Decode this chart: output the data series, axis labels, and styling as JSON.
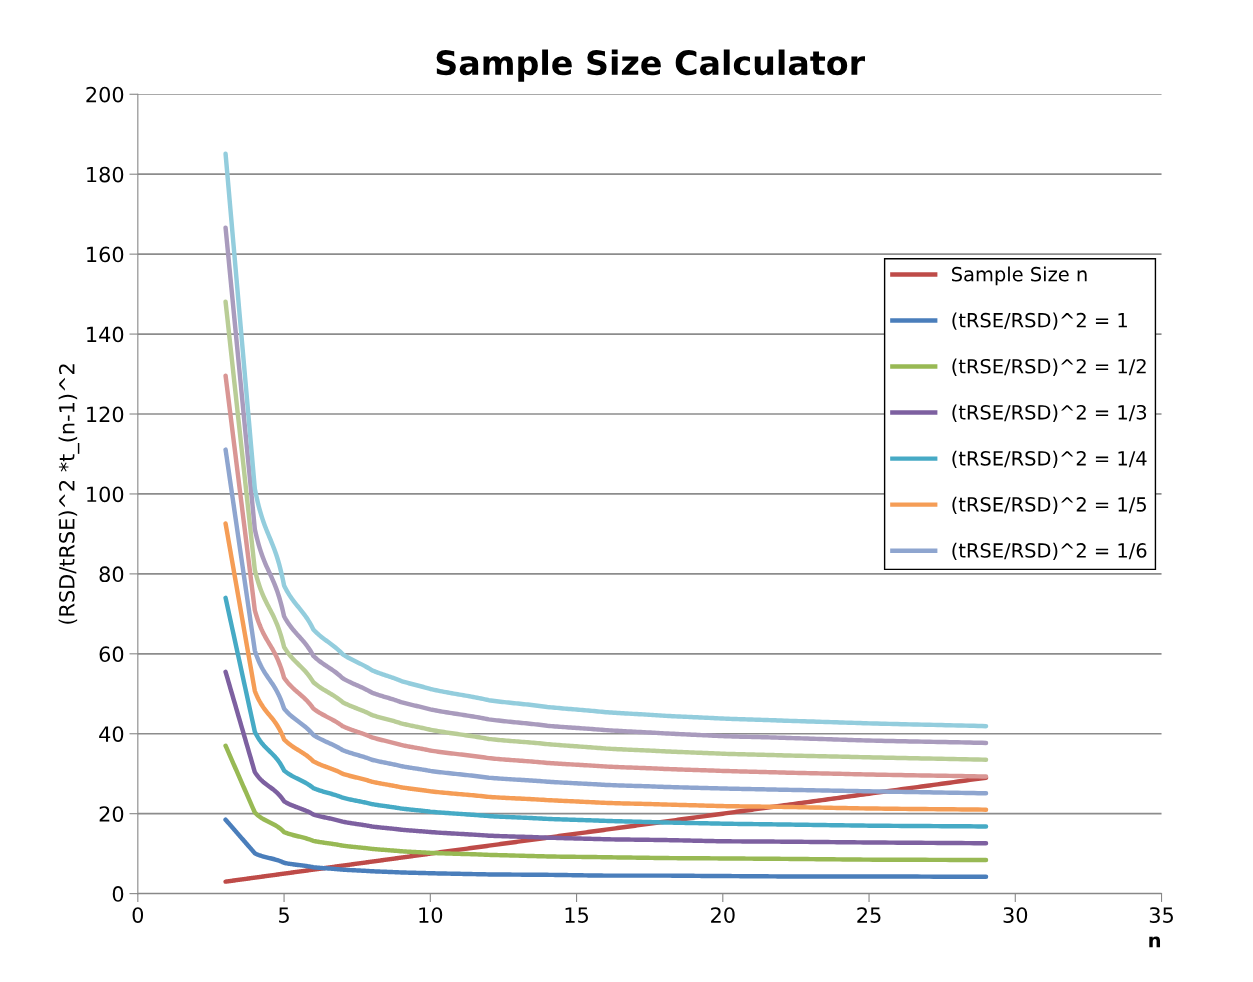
{
  "chart_data": {
    "type": "line",
    "title": "Sample Size Calculator",
    "xlabel": "n",
    "ylabel": "(RSD/tRSE)^2 *t_(n-1)^2",
    "xlim": [
      0,
      35
    ],
    "xticks": [
      0,
      5,
      10,
      15,
      20,
      25,
      30,
      35
    ],
    "ylim": [
      0,
      200
    ],
    "yticks": [
      0,
      20,
      40,
      60,
      80,
      100,
      120,
      140,
      160,
      180,
      200
    ],
    "grid": "y",
    "legend": "right",
    "marker": "none",
    "line_style": "solid",
    "x": [
      3,
      4,
      5,
      6,
      7,
      8,
      9,
      10,
      12,
      14,
      16,
      18,
      20,
      22,
      25,
      29
    ],
    "series": [
      {
        "name": "Sample Size n",
        "color": "#be4b48",
        "values": [
          3,
          4,
          5,
          6,
          7,
          8,
          9,
          10,
          12,
          14,
          16,
          18,
          20,
          22,
          25,
          29
        ]
      },
      {
        "name": "(tRSE/RSD)^2 = 1",
        "color": "#4a7ebb",
        "values": [
          18.5,
          10.1,
          7.7,
          6.6,
          6.0,
          5.6,
          5.3,
          5.1,
          4.8,
          4.7,
          4.5,
          4.5,
          4.4,
          4.3,
          4.3,
          4.2
        ]
      },
      {
        "name": "(tRSE/RSD)^2 = 1/2",
        "color": "#98b954",
        "values": [
          37.0,
          20.3,
          15.4,
          13.2,
          12.0,
          11.2,
          10.6,
          10.2,
          9.7,
          9.3,
          9.1,
          8.9,
          8.8,
          8.7,
          8.5,
          8.4
        ]
      },
      {
        "name": "(tRSE/RSD)^2 = 1/3",
        "color": "#7d60a0",
        "values": [
          55.5,
          30.4,
          23.1,
          19.8,
          18.0,
          16.8,
          16.0,
          15.4,
          14.5,
          14.0,
          13.6,
          13.4,
          13.1,
          13.0,
          12.8,
          12.6
        ]
      },
      {
        "name": "(tRSE/RSD)^2 = 1/4",
        "color": "#46aac5",
        "values": [
          74.0,
          40.5,
          30.8,
          26.4,
          24.0,
          22.4,
          21.3,
          20.5,
          19.4,
          18.7,
          18.2,
          17.8,
          17.5,
          17.3,
          17.0,
          16.8
        ]
      },
      {
        "name": "(tRSE/RSD)^2 = 1/5",
        "color": "#f59d56",
        "values": [
          92.6,
          50.7,
          38.6,
          33.1,
          30.0,
          28.0,
          26.6,
          25.6,
          24.2,
          23.4,
          22.7,
          22.3,
          21.9,
          21.7,
          21.3,
          21.0
        ]
      },
      {
        "name": "(tRSE/RSD)^2 = 1/6",
        "color": "#8ea5cf",
        "values": [
          111.1,
          60.8,
          46.3,
          39.7,
          35.9,
          33.5,
          31.9,
          30.7,
          29.0,
          28.0,
          27.2,
          26.7,
          26.3,
          26.0,
          25.6,
          25.1
        ]
      },
      {
        "color": "#d99694",
        "values": [
          129.6,
          70.9,
          54.0,
          46.3,
          41.9,
          39.1,
          37.2,
          35.8,
          33.9,
          32.7,
          31.8,
          31.2,
          30.7,
          30.3,
          29.8,
          29.3
        ]
      },
      {
        "color": "#b9cd96",
        "values": [
          148.1,
          81.0,
          61.7,
          52.9,
          47.9,
          44.7,
          42.6,
          41.0,
          38.7,
          37.4,
          36.3,
          35.6,
          35.0,
          34.6,
          34.1,
          33.5
        ]
      },
      {
        "color": "#a99bbd",
        "values": [
          166.6,
          91.2,
          69.4,
          59.5,
          53.9,
          50.3,
          47.9,
          46.1,
          43.6,
          42.0,
          40.9,
          40.1,
          39.4,
          39.0,
          38.3,
          37.7
        ]
      },
      {
        "color": "#93cddd",
        "values": [
          185.1,
          101.3,
          77.1,
          66.1,
          59.9,
          55.9,
          53.2,
          51.2,
          48.4,
          46.7,
          45.4,
          44.5,
          43.8,
          43.3,
          42.6,
          41.9
        ]
      }
    ]
  }
}
